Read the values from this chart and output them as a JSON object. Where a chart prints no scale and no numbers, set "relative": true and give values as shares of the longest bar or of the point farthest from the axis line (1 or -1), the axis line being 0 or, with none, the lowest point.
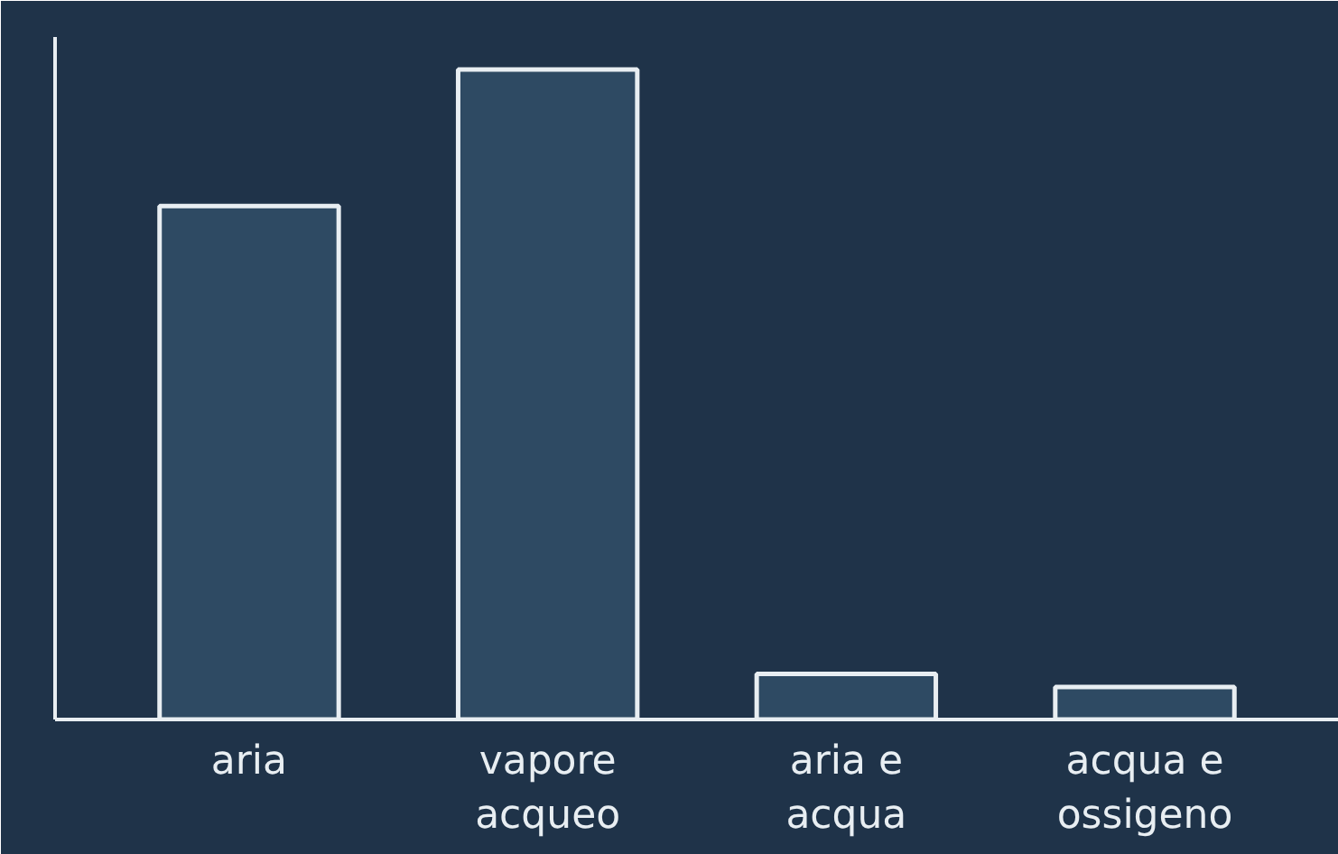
{
  "chart_data": {
    "type": "bar",
    "relative": true,
    "categories": [
      "aria",
      "vapore acqueo",
      "aria e acqua",
      "acqua e ossigeno"
    ],
    "values": [
      0.79,
      1,
      0.07,
      0.05
    ],
    "color": "#2e4a63"
  }
}
